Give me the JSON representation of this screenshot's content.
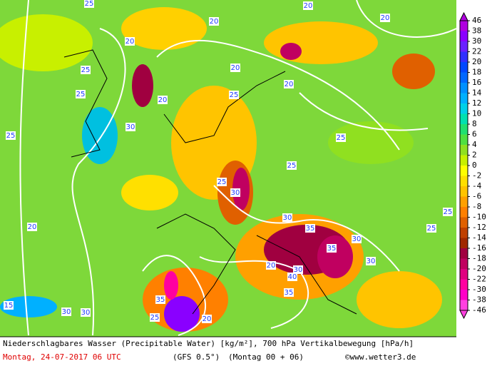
{
  "legend": {
    "ticks": [
      46,
      38,
      30,
      22,
      20,
      18,
      16,
      14,
      12,
      10,
      8,
      6,
      4,
      2,
      0,
      -2,
      -4,
      -6,
      -8,
      -10,
      -12,
      -14,
      -16,
      -18,
      -20,
      -22,
      -30,
      -38,
      -46
    ],
    "colors": [
      "#b000e0",
      "#8a00ff",
      "#6a20ff",
      "#3030ff",
      "#0048ff",
      "#0068ff",
      "#0090ff",
      "#00b0ff",
      "#00d0e8",
      "#00e0b0",
      "#20e070",
      "#50e040",
      "#90e020",
      "#c8f000",
      "#ffff00",
      "#ffe000",
      "#ffc400",
      "#ffa000",
      "#ff8000",
      "#e06000",
      "#c04000",
      "#a02800",
      "#a00040",
      "#c00060",
      "#e00080",
      "#ff00a0",
      "#ff00c8",
      "#ff40e0"
    ]
  },
  "contour_labels": [
    "25",
    "20",
    "20",
    "25",
    "20",
    "25",
    "25",
    "25",
    "20",
    "30",
    "20",
    "25",
    "30",
    "25",
    "20",
    "20",
    "25",
    "30",
    "35",
    "35",
    "30",
    "20",
    "30",
    "35",
    "40",
    "30",
    "35",
    "25",
    "20",
    "15",
    "30",
    "20",
    "30",
    "25",
    "25"
  ],
  "footer": {
    "title": "Niederschlagbares Wasser (Precipitable Water) [kg/m²], 700 hPa Vertikalbewegung [hPa/h]",
    "date": "Montag, 24-07-2017  06 UTC",
    "model": "(GFS 0.5°)",
    "run": "(Montag 00 + 06)",
    "source": "©www.wetter3.de"
  }
}
